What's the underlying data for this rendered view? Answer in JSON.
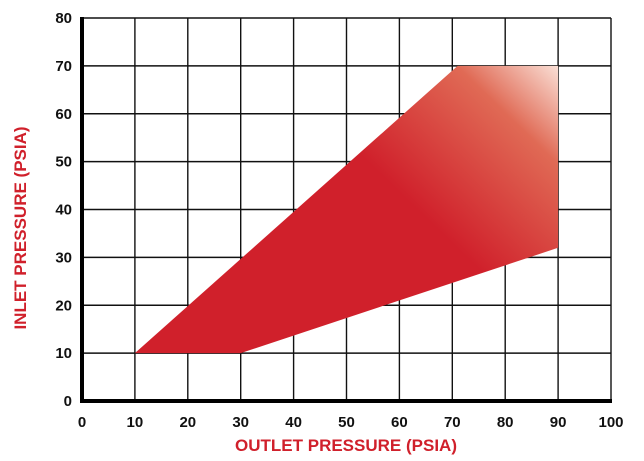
{
  "chart_data": {
    "type": "area",
    "title": "",
    "xlabel": "OUTLET PRESSURE (PSIA)",
    "ylabel": "INLET PRESSURE (PSIA)",
    "xlim": [
      0,
      100
    ],
    "ylim": [
      0,
      80
    ],
    "x_ticks": [
      "0",
      "10",
      "20",
      "30",
      "40",
      "50",
      "60",
      "70",
      "80",
      "90",
      "100"
    ],
    "y_ticks": [
      "0",
      "10",
      "20",
      "30",
      "40",
      "50",
      "60",
      "70",
      "80"
    ],
    "grid": true,
    "legend": "none",
    "region_boundary": [
      {
        "x": 10,
        "y": 10
      },
      {
        "x": 30,
        "y": 10
      },
      {
        "x": 90,
        "y": 32
      },
      {
        "x": 90,
        "y": 70
      },
      {
        "x": 71,
        "y": 70
      },
      {
        "x": 10,
        "y": 10
      }
    ],
    "colors": {
      "region_dark": "#d0202b",
      "region_light": "#fbe6dd",
      "axis_title": "#d0202b",
      "grid": "#111111"
    }
  }
}
